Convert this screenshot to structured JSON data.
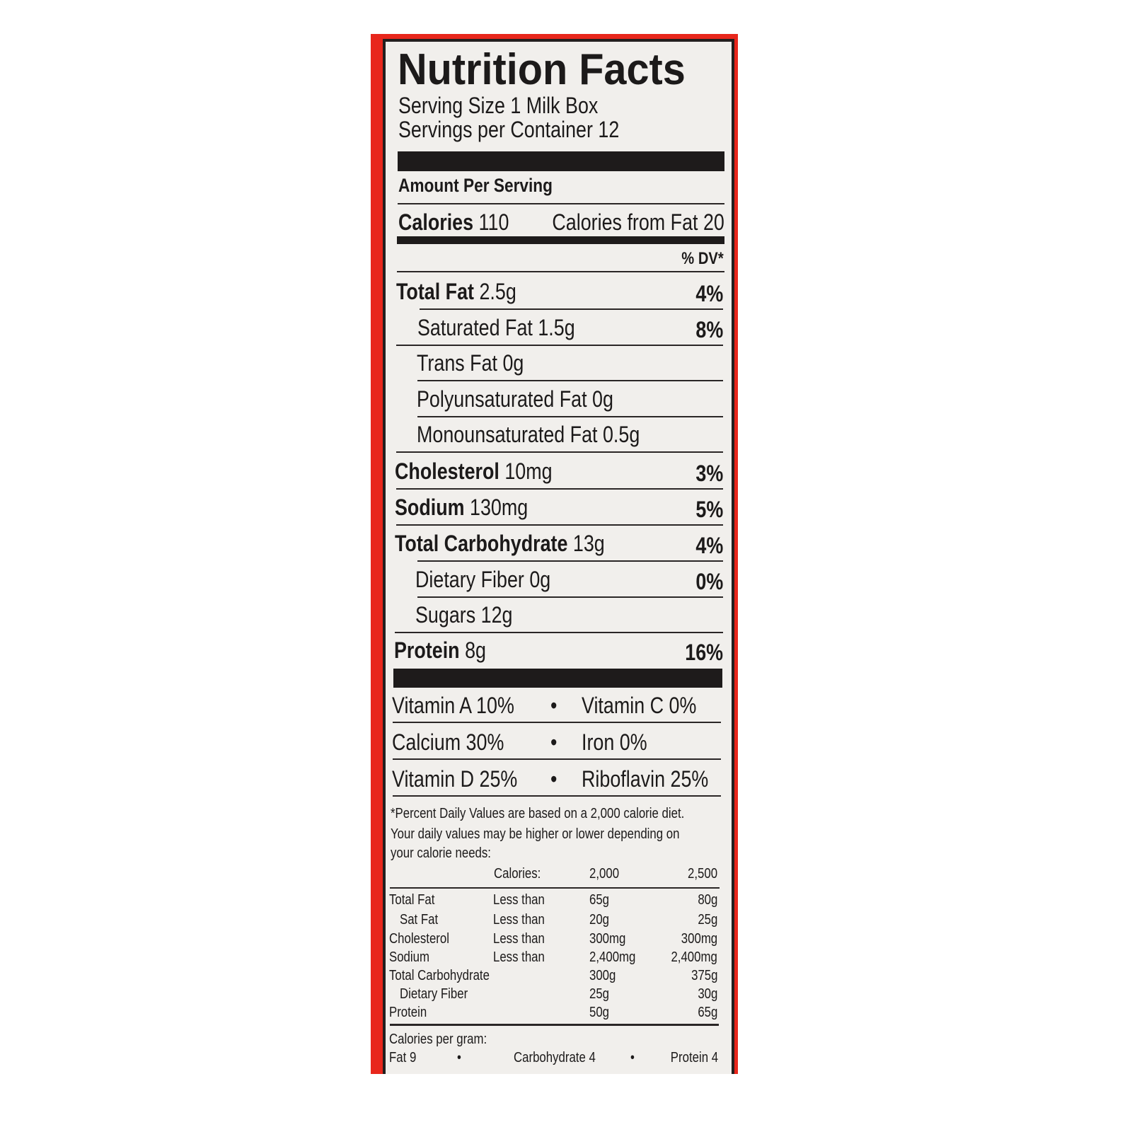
{
  "title": "Nutrition Facts",
  "serving_size": "Serving Size 1 Milk Box",
  "servings_per_container": "Servings per Container 12",
  "amount_per_serving": "Amount Per Serving",
  "calories": {
    "label": "Calories",
    "value": "110",
    "from_fat": "Calories from Fat 20"
  },
  "dv_header": "% DV*",
  "nutrients": [
    {
      "label": "Total Fat",
      "amount": "2.5g",
      "dv": "4%"
    },
    {
      "label": "Saturated Fat",
      "amount": "1.5g",
      "dv": "8%"
    },
    {
      "label": "Trans Fat",
      "amount": "0g",
      "dv": ""
    },
    {
      "label": "Polyunsaturated Fat",
      "amount": "0g",
      "dv": ""
    },
    {
      "label": "Monounsaturated Fat",
      "amount": "0.5g",
      "dv": ""
    },
    {
      "label": "Cholesterol",
      "amount": "10mg",
      "dv": "3%"
    },
    {
      "label": "Sodium",
      "amount": "130mg",
      "dv": "5%"
    },
    {
      "label": "Total Carbohydrate",
      "amount": "13g",
      "dv": "4%"
    },
    {
      "label": "Dietary Fiber",
      "amount": "0g",
      "dv": "0%"
    },
    {
      "label": "Sugars",
      "amount": "12g",
      "dv": ""
    },
    {
      "label": "Protein",
      "amount": "8g",
      "dv": "16%"
    }
  ],
  "vitamins": [
    {
      "left": "Vitamin A 10%",
      "right": "Vitamin C 0%"
    },
    {
      "left": "Calcium 30%",
      "right": "Iron 0%"
    },
    {
      "left": "Vitamin D 25%",
      "right": "Riboflavin 25%"
    }
  ],
  "bullet": "•",
  "footnote": [
    "*Percent Daily Values are based on a 2,000 calorie diet.",
    "Your daily values may be higher or lower depending on",
    "your calorie needs:"
  ],
  "dv_table": {
    "header": [
      "",
      "Calories:",
      "2,000",
      "2,500"
    ],
    "rows": [
      [
        "Total Fat",
        "Less than",
        "65g",
        "80g"
      ],
      [
        "Sat Fat",
        "Less than",
        "20g",
        "25g"
      ],
      [
        "Cholesterol",
        "Less than",
        "300mg",
        "300mg"
      ],
      [
        "Sodium",
        "Less than",
        "2,400mg",
        "2,400mg"
      ],
      [
        "Total Carbohydrate",
        "",
        "300g",
        "375g"
      ],
      [
        "Dietary Fiber",
        "",
        "25g",
        "30g"
      ],
      [
        "Protein",
        "",
        "50g",
        "65g"
      ]
    ]
  },
  "calories_per_gram": {
    "label": "Calories per gram:",
    "fat": "Fat 9",
    "carb": "Carbohydrate 4",
    "protein": "Protein 4"
  },
  "colors": {
    "frame": "#e8271c",
    "ink": "#1c1a1a",
    "paper": "#f1efec"
  }
}
